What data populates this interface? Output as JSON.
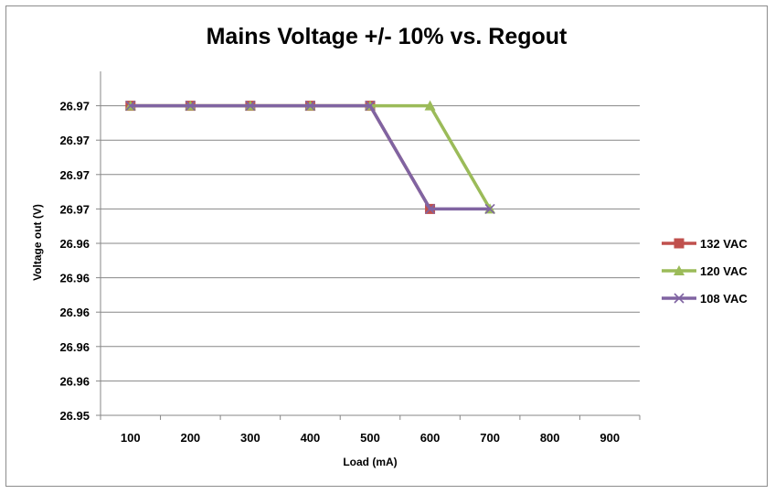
{
  "chart_data": {
    "type": "line",
    "title": "Mains Voltage +/- 10% vs. Regout",
    "xlabel": "Load (mA)",
    "ylabel": "Voltage out (V)",
    "categories": [
      "100",
      "200",
      "300",
      "400",
      "500",
      "600",
      "700",
      "800",
      "900"
    ],
    "ytick_labels": [
      "26.95",
      "26.96",
      "26.96",
      "26.96",
      "26.96",
      "26.96",
      "26.97",
      "26.97",
      "26.97",
      "26.97"
    ],
    "ylim": [
      26.95,
      26.972
    ],
    "ytick_step": 0.0022,
    "grid": "horizontal",
    "legend_position": "right",
    "series": [
      {
        "name": "132 VAC",
        "color": "#c0504d",
        "marker": "square",
        "values": [
          26.9698,
          26.9698,
          26.9698,
          26.9698,
          26.9698,
          26.9632,
          null,
          null,
          null
        ]
      },
      {
        "name": "120 VAC",
        "color": "#9bbb59",
        "marker": "triangle",
        "values": [
          26.9698,
          26.9698,
          26.9698,
          26.9698,
          26.9698,
          26.9698,
          26.9632,
          null,
          null
        ]
      },
      {
        "name": "108 VAC",
        "color": "#8064a2",
        "marker": "x",
        "values": [
          26.9698,
          26.9698,
          26.9698,
          26.9698,
          26.9698,
          26.9632,
          26.9632,
          null,
          null
        ]
      }
    ]
  }
}
